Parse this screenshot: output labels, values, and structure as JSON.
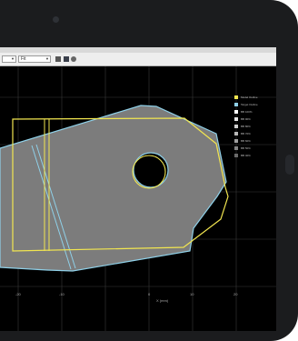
{
  "toolbar": {
    "view_select": "",
    "scale_select": "Fit",
    "tools": [
      "home-icon",
      "save-icon",
      "zoom-icon"
    ]
  },
  "plot": {
    "background": "#000000",
    "grid_color": "#3a3a3a",
    "shape_fill": "#7c7c7c",
    "model_outline_color": "#f2e650",
    "target_outline_color": "#8fd0e8",
    "x_tick_labels": [
      "-20",
      "-10",
      "0",
      "10",
      "20"
    ],
    "x_axis_label": "X (mm)"
  },
  "legend": {
    "items": [
      {
        "label": "Model Outline",
        "color": "#f2e650"
      },
      {
        "label": "Target Outline",
        "color": "#8fd0e8"
      },
      {
        "label": "BB 100%",
        "color": "#ffffff"
      },
      {
        "label": "BB 90%",
        "color": "#e8e8e8"
      },
      {
        "label": "BB 80%",
        "color": "#d0d0d0"
      },
      {
        "label": "BB 70%",
        "color": "#b8b8b8"
      },
      {
        "label": "BB 60%",
        "color": "#9e9e9e"
      },
      {
        "label": "BB 50%",
        "color": "#858585"
      },
      {
        "label": "BB 40%",
        "color": "#6a6a6a"
      }
    ]
  }
}
